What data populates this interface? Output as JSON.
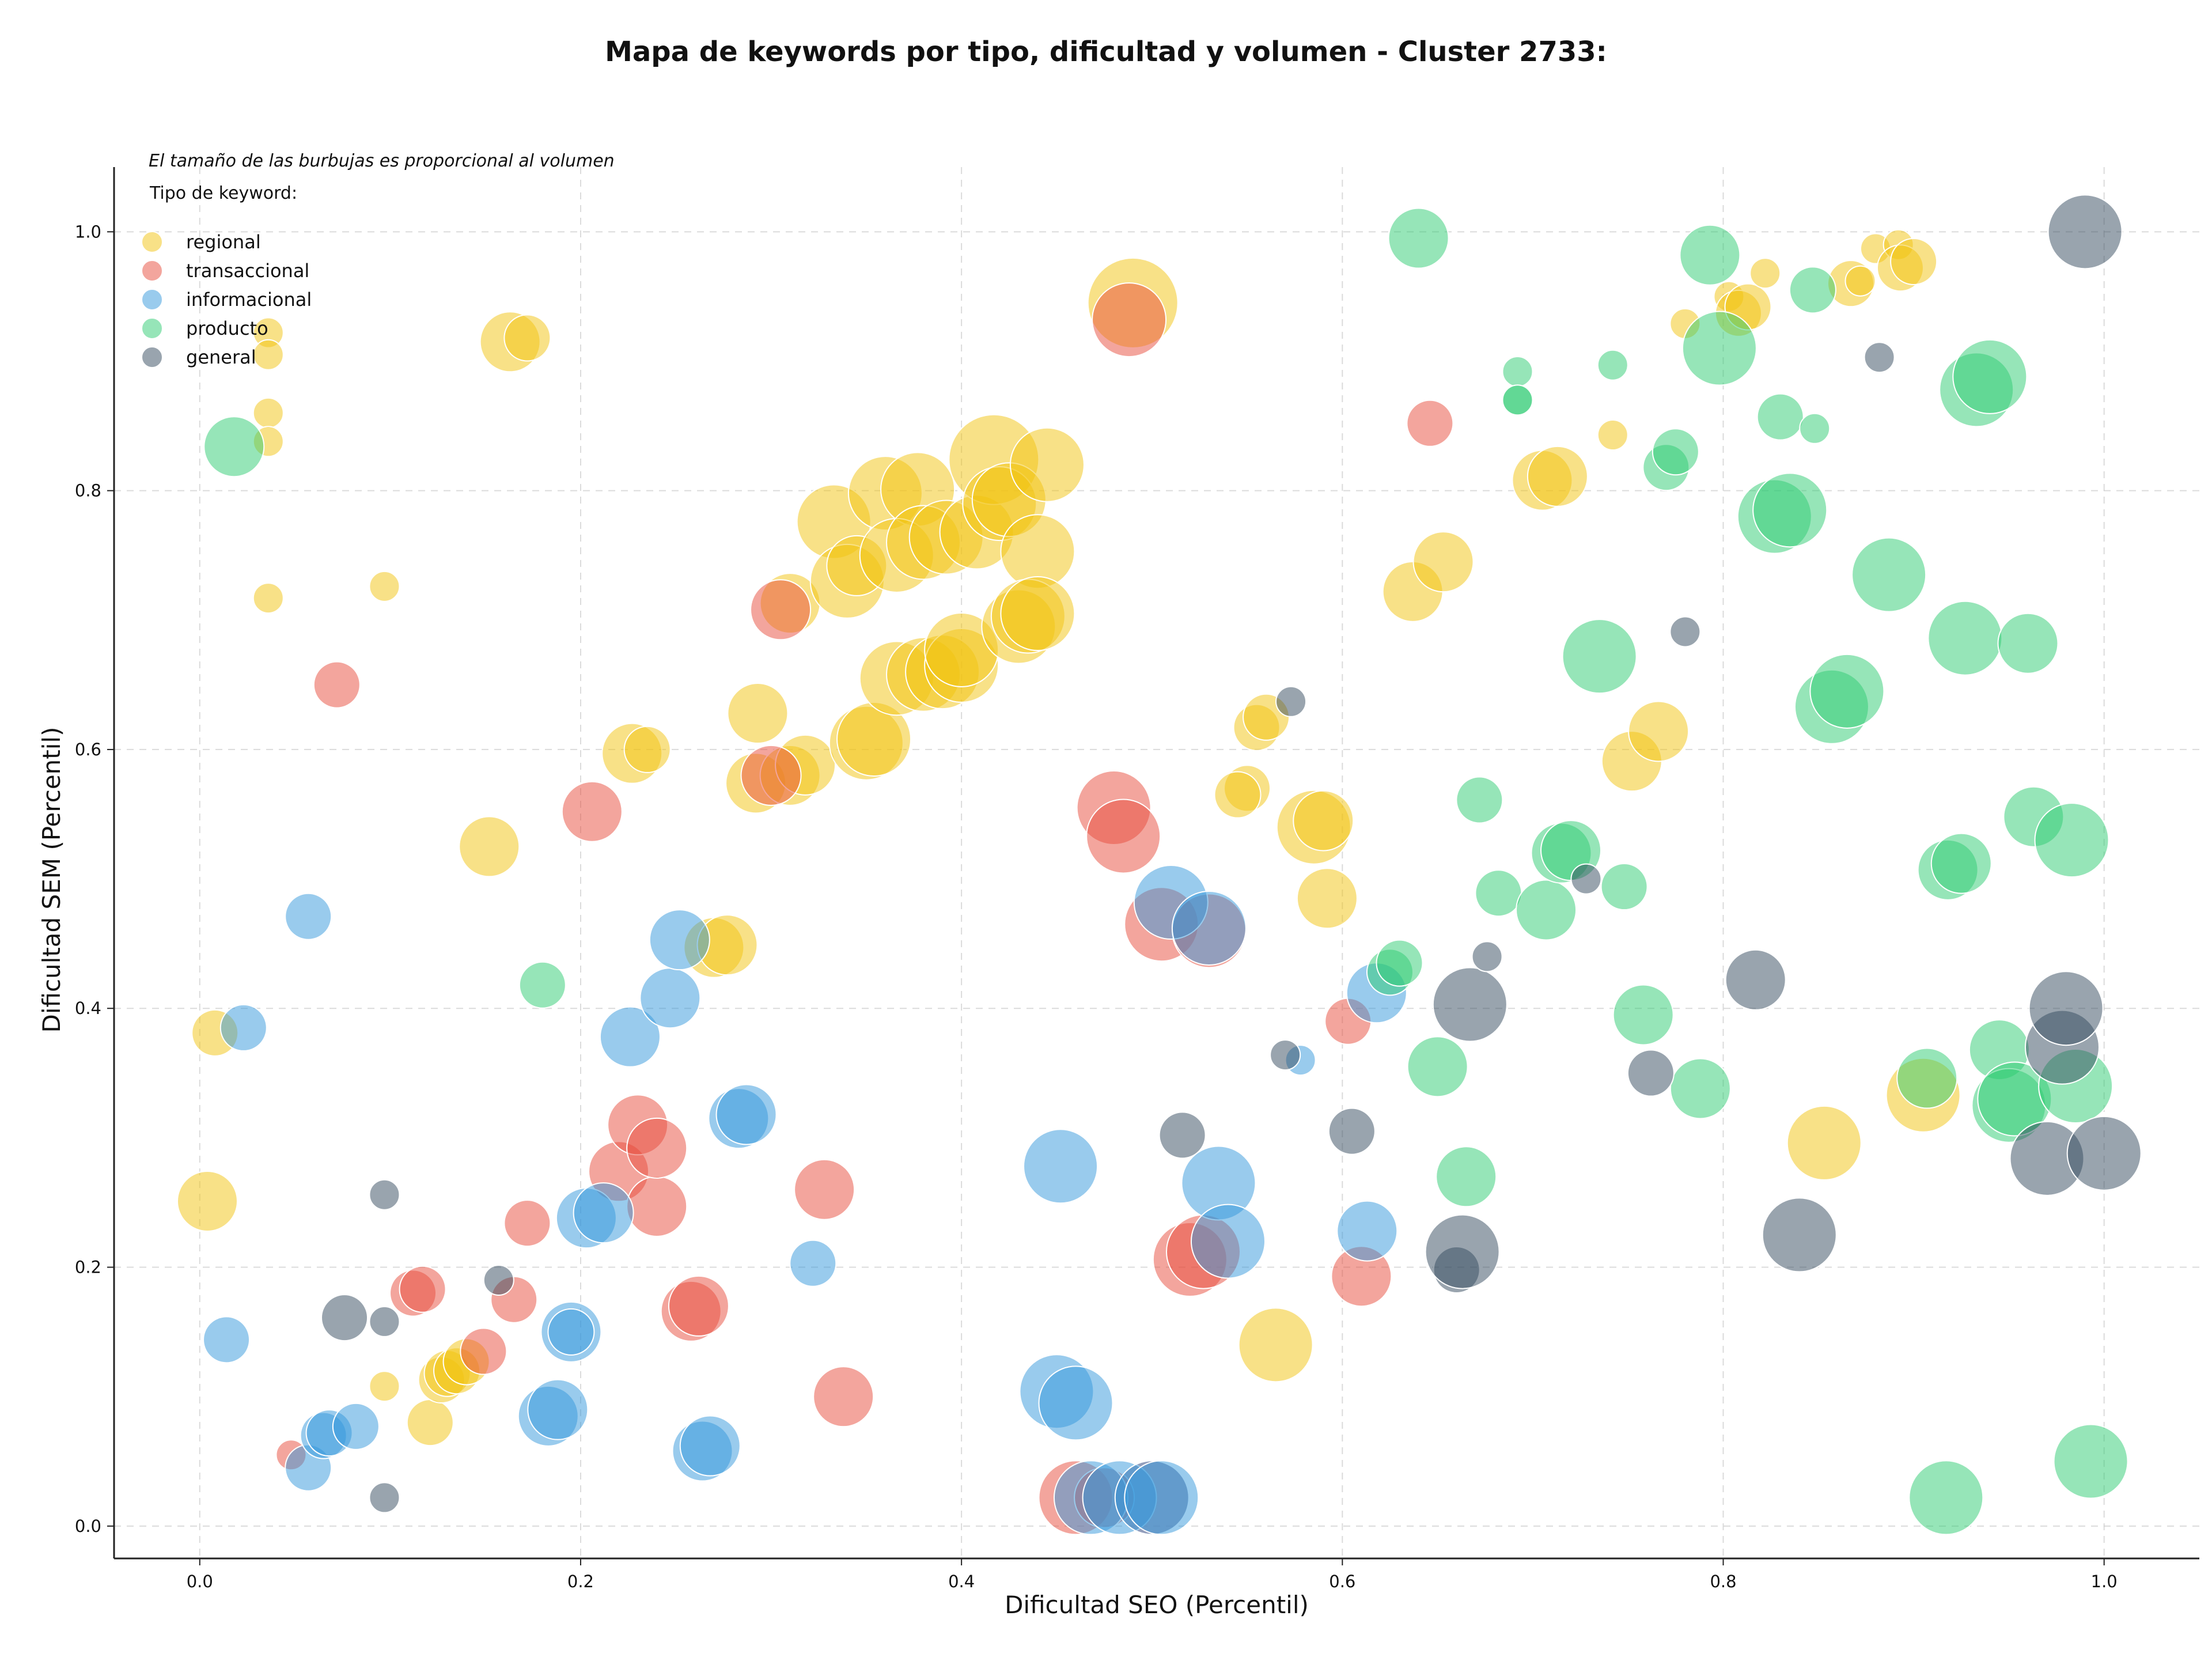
{
  "chart_data": {
    "type": "scatter",
    "title": "Mapa de keywords por tipo, dificultad y volumen - Cluster 2733:",
    "xlabel": "Dificultad SEO (Percentil)",
    "ylabel": "Dificultad SEM (Percentil)",
    "annotation": "El tamaño de las burbujas es proporcional al volumen",
    "legend_title": "Tipo de keyword:",
    "legend_position": "top-left",
    "grid": true,
    "xlim": [
      -0.045,
      1.05
    ],
    "ylim": [
      -0.025,
      1.05
    ],
    "x_ticks": [
      "0.0",
      "0.2",
      "0.4",
      "0.6",
      "0.8",
      "1.0"
    ],
    "y_ticks": [
      "0.0",
      "0.2",
      "0.4",
      "0.6",
      "0.8",
      "1.0"
    ],
    "x_tick_values": [
      0,
      0.2,
      0.4,
      0.6,
      0.8,
      1.0
    ],
    "y_tick_values": [
      0,
      0.2,
      0.4,
      0.6,
      0.8,
      1.0
    ],
    "series": [
      {
        "name": "regional",
        "color": "#f1c40f",
        "points": [
          [
            0.036,
            0.922,
            1
          ],
          [
            0.036,
            0.905,
            1
          ],
          [
            0.036,
            0.86,
            1
          ],
          [
            0.036,
            0.838,
            1
          ],
          [
            0.036,
            0.717,
            1
          ],
          [
            0.097,
            0.726,
            1
          ],
          [
            0.163,
            0.915,
            3
          ],
          [
            0.172,
            0.918,
            2
          ],
          [
            0.008,
            0.381,
            2
          ],
          [
            0.004,
            0.251,
            3
          ],
          [
            0.152,
            0.525,
            3
          ],
          [
            0.227,
            0.597,
            3
          ],
          [
            0.235,
            0.6,
            2
          ],
          [
            0.293,
            0.628,
            3
          ],
          [
            0.292,
            0.574,
            3
          ],
          [
            0.31,
            0.58,
            3
          ],
          [
            0.318,
            0.588,
            3
          ],
          [
            0.31,
            0.713,
            3
          ],
          [
            0.27,
            0.447,
            3
          ],
          [
            0.277,
            0.449,
            3
          ],
          [
            0.097,
            0.108,
            1
          ],
          [
            0.121,
            0.08,
            2
          ],
          [
            0.127,
            0.113,
            2
          ],
          [
            0.13,
            0.118,
            2
          ],
          [
            0.135,
            0.12,
            2
          ],
          [
            0.14,
            0.127,
            2
          ],
          [
            0.333,
            0.776,
            4
          ],
          [
            0.34,
            0.73,
            4
          ],
          [
            0.345,
            0.742,
            3
          ],
          [
            0.36,
            0.798,
            4
          ],
          [
            0.377,
            0.801,
            4
          ],
          [
            0.366,
            0.75,
            4
          ],
          [
            0.38,
            0.76,
            4
          ],
          [
            0.392,
            0.764,
            4
          ],
          [
            0.408,
            0.768,
            4
          ],
          [
            0.417,
            0.824,
            5
          ],
          [
            0.42,
            0.79,
            4
          ],
          [
            0.425,
            0.793,
            4
          ],
          [
            0.445,
            0.82,
            4
          ],
          [
            0.44,
            0.753,
            4
          ],
          [
            0.35,
            0.605,
            4
          ],
          [
            0.354,
            0.608,
            4
          ],
          [
            0.366,
            0.655,
            4
          ],
          [
            0.38,
            0.658,
            4
          ],
          [
            0.39,
            0.66,
            4
          ],
          [
            0.4,
            0.665,
            4
          ],
          [
            0.4,
            0.677,
            4
          ],
          [
            0.43,
            0.695,
            4
          ],
          [
            0.435,
            0.703,
            4
          ],
          [
            0.44,
            0.705,
            4
          ],
          [
            0.49,
            0.945,
            5
          ],
          [
            0.555,
            0.617,
            2
          ],
          [
            0.56,
            0.625,
            2
          ],
          [
            0.55,
            0.57,
            2
          ],
          [
            0.545,
            0.565,
            2
          ],
          [
            0.585,
            0.54,
            4
          ],
          [
            0.59,
            0.545,
            3
          ],
          [
            0.592,
            0.485,
            3
          ],
          [
            0.565,
            0.14,
            4
          ],
          [
            0.637,
            0.722,
            3
          ],
          [
            0.653,
            0.745,
            3
          ],
          [
            0.705,
            0.808,
            3
          ],
          [
            0.713,
            0.811,
            3
          ],
          [
            0.742,
            0.843,
            1
          ],
          [
            0.752,
            0.591,
            3
          ],
          [
            0.766,
            0.614,
            3
          ],
          [
            0.78,
            0.929,
            1
          ],
          [
            0.803,
            0.95,
            1
          ],
          [
            0.808,
            0.937,
            2
          ],
          [
            0.813,
            0.942,
            2
          ],
          [
            0.822,
            0.968,
            1
          ],
          [
            0.867,
            0.96,
            2
          ],
          [
            0.872,
            0.962,
            1
          ],
          [
            0.88,
            0.987,
            1
          ],
          [
            0.892,
            0.99,
            1
          ],
          [
            0.893,
            0.972,
            2
          ],
          [
            0.9,
            0.977,
            2
          ],
          [
            0.905,
            0.333,
            4
          ],
          [
            0.853,
            0.296,
            4
          ]
        ]
      },
      {
        "name": "transaccional",
        "color": "#e74c3c",
        "points": [
          [
            0.072,
            0.65,
            2
          ],
          [
            0.048,
            0.055,
            1
          ],
          [
            0.112,
            0.18,
            2
          ],
          [
            0.117,
            0.183,
            2
          ],
          [
            0.149,
            0.135,
            2
          ],
          [
            0.165,
            0.175,
            2
          ],
          [
            0.172,
            0.234,
            2
          ],
          [
            0.206,
            0.552,
            3
          ],
          [
            0.22,
            0.274,
            3
          ],
          [
            0.23,
            0.31,
            3
          ],
          [
            0.24,
            0.247,
            3
          ],
          [
            0.24,
            0.292,
            3
          ],
          [
            0.258,
            0.166,
            3
          ],
          [
            0.262,
            0.17,
            3
          ],
          [
            0.305,
            0.708,
            3
          ],
          [
            0.3,
            0.58,
            3
          ],
          [
            0.328,
            0.26,
            3
          ],
          [
            0.338,
            0.1,
            3
          ],
          [
            0.48,
            0.555,
            4
          ],
          [
            0.485,
            0.533,
            4
          ],
          [
            0.488,
            0.932,
            4
          ],
          [
            0.5,
            0.022,
            4
          ],
          [
            0.46,
            0.022,
            4
          ],
          [
            0.475,
            0.022,
            3
          ],
          [
            0.505,
            0.465,
            4
          ],
          [
            0.53,
            0.46,
            4
          ],
          [
            0.52,
            0.206,
            4
          ],
          [
            0.527,
            0.212,
            4
          ],
          [
            0.603,
            0.39,
            2
          ],
          [
            0.61,
            0.193,
            3
          ],
          [
            0.646,
            0.852,
            2
          ]
        ]
      },
      {
        "name": "informacional",
        "color": "#3498db",
        "points": [
          [
            0.057,
            0.471,
            2
          ],
          [
            0.023,
            0.385,
            2
          ],
          [
            0.014,
            0.144,
            2
          ],
          [
            0.057,
            0.045,
            2
          ],
          [
            0.065,
            0.07,
            2
          ],
          [
            0.068,
            0.072,
            2
          ],
          [
            0.082,
            0.077,
            2
          ],
          [
            0.183,
            0.085,
            3
          ],
          [
            0.188,
            0.09,
            3
          ],
          [
            0.195,
            0.15,
            3
          ],
          [
            0.195,
            0.15,
            2
          ],
          [
            0.203,
            0.238,
            3
          ],
          [
            0.212,
            0.242,
            3
          ],
          [
            0.226,
            0.378,
            3
          ],
          [
            0.247,
            0.408,
            3
          ],
          [
            0.252,
            0.453,
            3
          ],
          [
            0.264,
            0.058,
            3
          ],
          [
            0.268,
            0.062,
            3
          ],
          [
            0.283,
            0.315,
            3
          ],
          [
            0.287,
            0.318,
            3
          ],
          [
            0.322,
            0.203,
            2
          ],
          [
            0.452,
            0.278,
            4
          ],
          [
            0.45,
            0.104,
            4
          ],
          [
            0.46,
            0.095,
            4
          ],
          [
            0.468,
            0.022,
            4
          ],
          [
            0.483,
            0.022,
            4
          ],
          [
            0.5,
            0.022,
            4
          ],
          [
            0.505,
            0.022,
            4
          ],
          [
            0.51,
            0.482,
            4
          ],
          [
            0.53,
            0.462,
            4
          ],
          [
            0.535,
            0.265,
            4
          ],
          [
            0.54,
            0.22,
            4
          ],
          [
            0.578,
            0.36,
            1
          ],
          [
            0.613,
            0.228,
            3
          ],
          [
            0.618,
            0.412,
            3
          ]
        ]
      },
      {
        "name": "producto",
        "color": "#2ecc71",
        "points": [
          [
            0.018,
            0.834,
            3
          ],
          [
            0.18,
            0.418,
            2
          ],
          [
            0.64,
            0.995,
            3
          ],
          [
            0.625,
            0.428,
            2
          ],
          [
            0.63,
            0.435,
            2
          ],
          [
            0.65,
            0.355,
            3
          ],
          [
            0.665,
            0.27,
            3
          ],
          [
            0.672,
            0.561,
            2
          ],
          [
            0.682,
            0.489,
            2
          ],
          [
            0.692,
            0.892,
            1
          ],
          [
            0.692,
            0.87,
            1
          ],
          [
            0.692,
            0.87,
            1
          ],
          [
            0.707,
            0.476,
            3
          ],
          [
            0.715,
            0.52,
            3
          ],
          [
            0.72,
            0.522,
            3
          ],
          [
            0.735,
            0.672,
            4
          ],
          [
            0.742,
            0.897,
            1
          ],
          [
            0.748,
            0.494,
            2
          ],
          [
            0.758,
            0.395,
            3
          ],
          [
            0.77,
            0.818,
            2
          ],
          [
            0.775,
            0.83,
            2
          ],
          [
            0.788,
            0.338,
            3
          ],
          [
            0.793,
            0.982,
            3
          ],
          [
            0.798,
            0.91,
            4
          ],
          [
            0.827,
            0.78,
            4
          ],
          [
            0.835,
            0.785,
            4
          ],
          [
            0.83,
            0.857,
            2
          ],
          [
            0.847,
            0.955,
            2
          ],
          [
            0.848,
            0.848,
            1
          ],
          [
            0.857,
            0.633,
            4
          ],
          [
            0.865,
            0.645,
            4
          ],
          [
            0.887,
            0.735,
            4
          ],
          [
            0.907,
            0.346,
            3
          ],
          [
            0.917,
            0.022,
            4
          ],
          [
            0.918,
            0.507,
            3
          ],
          [
            0.925,
            0.512,
            3
          ],
          [
            0.927,
            0.686,
            4
          ],
          [
            0.933,
            0.878,
            4
          ],
          [
            0.94,
            0.888,
            4
          ],
          [
            0.945,
            0.368,
            3
          ],
          [
            0.95,
            0.325,
            4
          ],
          [
            0.953,
            0.33,
            4
          ],
          [
            0.96,
            0.682,
            3
          ],
          [
            0.963,
            0.548,
            3
          ],
          [
            0.983,
            0.53,
            4
          ],
          [
            0.985,
            0.34,
            4
          ],
          [
            0.993,
            0.05,
            4
          ]
        ]
      },
      {
        "name": "general",
        "color": "#34495e",
        "points": [
          [
            0.097,
            0.256,
            1
          ],
          [
            0.097,
            0.022,
            1
          ],
          [
            0.097,
            0.158,
            1
          ],
          [
            0.076,
            0.161,
            2
          ],
          [
            0.157,
            0.19,
            1
          ],
          [
            0.516,
            0.302,
            2
          ],
          [
            0.57,
            0.364,
            1
          ],
          [
            0.573,
            0.637,
            1
          ],
          [
            0.605,
            0.305,
            2
          ],
          [
            0.66,
            0.198,
            2
          ],
          [
            0.663,
            0.212,
            4
          ],
          [
            0.667,
            0.403,
            4
          ],
          [
            0.676,
            0.44,
            1
          ],
          [
            0.728,
            0.5,
            1
          ],
          [
            0.762,
            0.35,
            2
          ],
          [
            0.78,
            0.691,
            1
          ],
          [
            0.817,
            0.422,
            3
          ],
          [
            0.84,
            0.225,
            4
          ],
          [
            0.882,
            0.903,
            1
          ],
          [
            0.97,
            0.284,
            4
          ],
          [
            0.978,
            0.37,
            4
          ],
          [
            0.98,
            0.4,
            4
          ],
          [
            0.99,
            1.0,
            4
          ],
          [
            1.0,
            0.288,
            4
          ]
        ]
      }
    ]
  }
}
